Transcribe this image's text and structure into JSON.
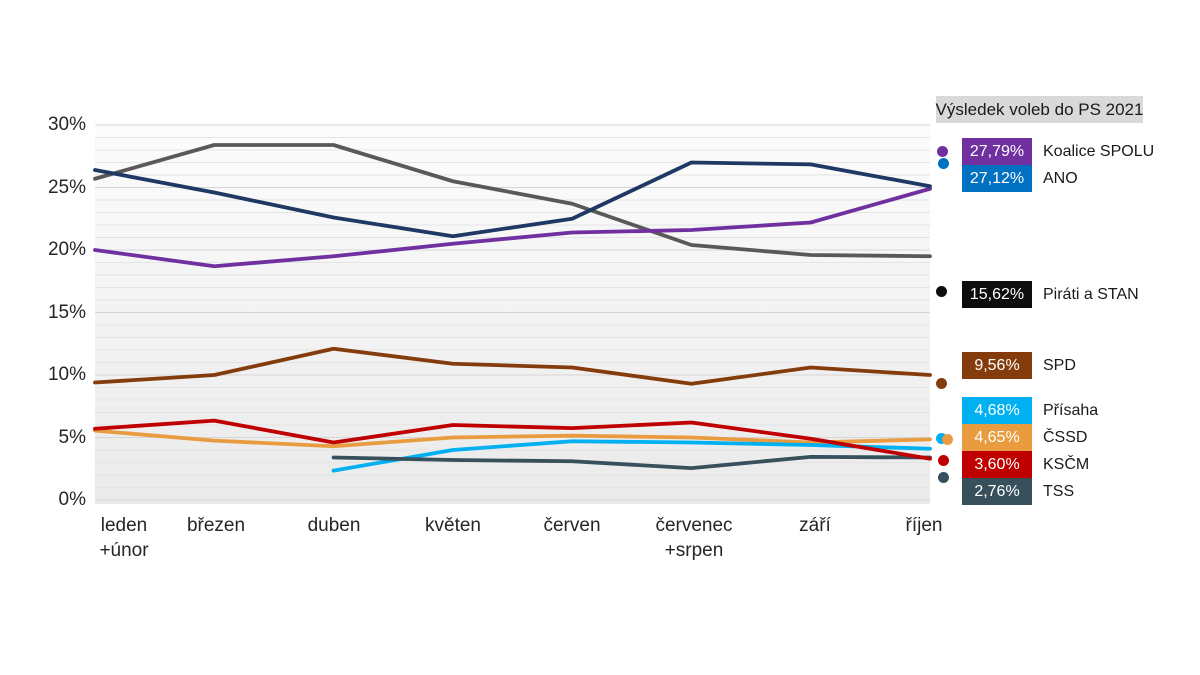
{
  "chart_data": {
    "type": "line",
    "title": "",
    "y_axis": {
      "ticks": [
        "0%",
        "5%",
        "10%",
        "15%",
        "20%",
        "25%",
        "30%"
      ],
      "min": 0,
      "max": 30,
      "major_step": 5,
      "minor_step": 1,
      "grid": true
    },
    "x_categories": [
      {
        "line1": "leden",
        "line2": "+únor"
      },
      {
        "line1": "březen",
        "line2": ""
      },
      {
        "line1": "duben",
        "line2": ""
      },
      {
        "line1": "květen",
        "line2": ""
      },
      {
        "line1": "červen",
        "line2": ""
      },
      {
        "line1": "červenec",
        "line2": "+srpen"
      },
      {
        "line1": "září",
        "line2": ""
      },
      {
        "line1": "říjen",
        "line2": ""
      }
    ],
    "series": [
      {
        "name": "Koalice SPOLU",
        "line_color": "#7030A0",
        "values": [
          20.0,
          18.7,
          19.5,
          20.5,
          21.4,
          21.6,
          22.2,
          24.9
        ]
      },
      {
        "name": "ANO",
        "line_color": "#1F3864",
        "values": [
          26.4,
          24.6,
          22.6,
          21.1,
          22.5,
          27.0,
          26.85,
          25.1
        ]
      },
      {
        "name": "Piráti a STAN",
        "line_color": "#595959",
        "values": [
          25.7,
          28.4,
          28.4,
          25.5,
          23.7,
          20.4,
          19.6,
          19.5
        ]
      },
      {
        "name": "SPD",
        "line_color": "#843C0C",
        "values": [
          9.4,
          10.0,
          12.1,
          10.9,
          10.6,
          9.3,
          10.6,
          10.0
        ]
      },
      {
        "name": "KSČM",
        "line_color": "#C00000",
        "values": [
          5.7,
          6.35,
          4.6,
          6.0,
          5.75,
          6.2,
          4.9,
          3.3
        ]
      },
      {
        "name": "ČSSD",
        "line_color": "#E89B3F",
        "values": [
          5.55,
          4.75,
          4.3,
          5.0,
          5.15,
          5.0,
          4.6,
          4.85
        ]
      },
      {
        "name": "Přísaha",
        "line_color": "#00B0F0",
        "values": [
          null,
          null,
          2.35,
          4.0,
          4.7,
          4.6,
          4.4,
          4.1
        ]
      },
      {
        "name": "TSS",
        "line_color": "#37505C",
        "values": [
          null,
          null,
          3.4,
          3.2,
          3.1,
          2.55,
          3.45,
          3.4
        ]
      }
    ],
    "legend": {
      "title": "Výsledek voleb do PS 2021",
      "position": "right",
      "entries": [
        {
          "party": "Koalice SPOLU",
          "result": "27,79%",
          "result_pct": 27.79,
          "swatch_color": "#7030A0"
        },
        {
          "party": "ANO",
          "result": "27,12%",
          "result_pct": 27.12,
          "swatch_color": "#0070C0"
        },
        {
          "party": "Piráti a STAN",
          "result": "15,62%",
          "result_pct": 15.62,
          "swatch_color": "#0D0D0D"
        },
        {
          "party": "SPD",
          "result": "9,56%",
          "result_pct": 9.56,
          "swatch_color": "#843C0C"
        },
        {
          "party": "Přísaha",
          "result": "4,68%",
          "result_pct": 4.68,
          "swatch_color": "#00B0F0"
        },
        {
          "party": "ČSSD",
          "result": "4,65%",
          "result_pct": 4.65,
          "swatch_color": "#E89B3F"
        },
        {
          "party": "KSČM",
          "result": "3,60%",
          "result_pct": 3.6,
          "swatch_color": "#C00000"
        },
        {
          "party": "TSS",
          "result": "2,76%",
          "result_pct": 2.76,
          "swatch_color": "#37505C"
        }
      ]
    },
    "colors": {
      "plot_bg_top": "#fcfcfc",
      "plot_bg_bottom": "#eaeaea",
      "grid_major": "#d6d6d6",
      "grid_minor": "#e4e4e4",
      "axis_text": "#262626",
      "legend_header_bg": "#d9d9d9",
      "legend_text": "#1a1a1a"
    }
  }
}
